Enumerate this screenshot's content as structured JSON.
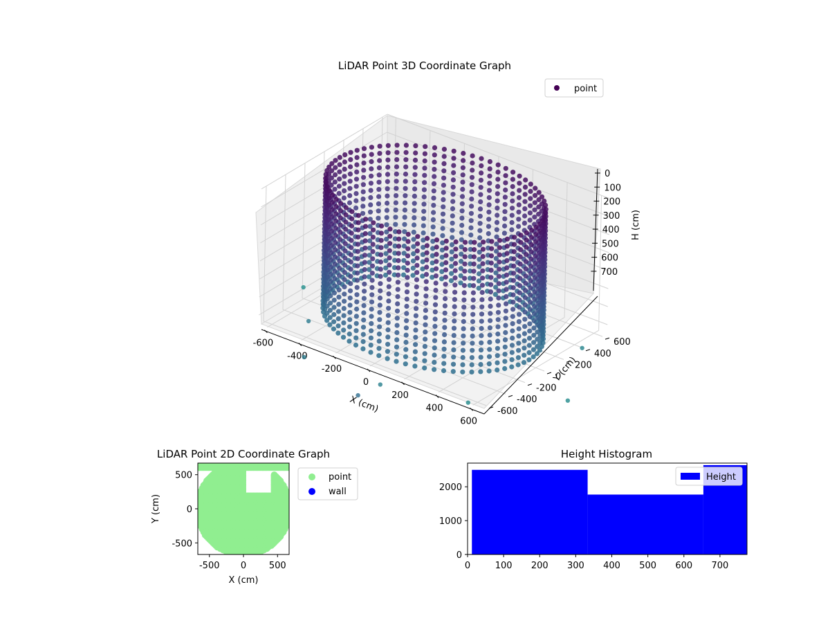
{
  "chart_data": [
    {
      "type": "scatter3d",
      "title": "LiDAR Point 3D Coordinate Graph",
      "xlabel": "X (cm)",
      "ylabel": "Y (cm)",
      "zlabel": "H (cm)",
      "xticks": [
        -600,
        -400,
        -200,
        0,
        200,
        400,
        600
      ],
      "yticks": [
        -600,
        -400,
        -200,
        0,
        200,
        400,
        600
      ],
      "zticks": [
        0,
        100,
        200,
        300,
        400,
        500,
        600,
        700
      ],
      "xlim": [
        -650,
        650
      ],
      "ylim": [
        -650,
        650
      ],
      "zlim": [
        0,
        750
      ],
      "zinverted": true,
      "grid": true,
      "legend": {
        "position": "top-right",
        "entries": [
          {
            "label": "point",
            "color": "#440154"
          }
        ]
      },
      "colormap": "viridis",
      "series": [
        {
          "name": "point",
          "description_shape": "cylindrical wall of radius ~560 cm sampled as vertical columns, plus scattered outliers",
          "wall_radius": 560,
          "wall_height_range": [
            0,
            750
          ],
          "column_count": 72,
          "column_samples": [
            0,
            40,
            80,
            120,
            160,
            200,
            240,
            280,
            320,
            360,
            400,
            440,
            480,
            520,
            560,
            600,
            640,
            680,
            720
          ]
        }
      ]
    },
    {
      "type": "scatter",
      "title": "LiDAR Point 2D Coordinate Graph",
      "xlabel": "X (cm)",
      "ylabel": "Y (cm)",
      "xticks": [
        -500,
        0,
        500
      ],
      "yticks": [
        -500,
        0,
        500
      ],
      "xlim": [
        -670,
        670
      ],
      "ylim": [
        -670,
        670
      ],
      "legend": {
        "position": "outside-right",
        "entries": [
          {
            "label": "point",
            "color": "#90ee90"
          },
          {
            "label": "wall",
            "color": "#0000ff"
          }
        ]
      },
      "series": [
        {
          "name": "point",
          "color": "#90ee90",
          "shape": "filled disk of radius ~650 cm with gaps near (100, 400)"
        },
        {
          "name": "wall",
          "color": "#0000ff",
          "values": []
        }
      ]
    },
    {
      "type": "bar",
      "title": "Height Histogram",
      "xticks": [
        0,
        100,
        200,
        300,
        400,
        500,
        600,
        700
      ],
      "yticks": [
        0,
        1000,
        2000
      ],
      "xlim": [
        0,
        775
      ],
      "ylim": [
        0,
        2700
      ],
      "color": "#0000ff",
      "legend": {
        "position": "top-right",
        "entries": [
          {
            "label": "Height",
            "color": "#0000ff"
          }
        ]
      },
      "bins": [
        {
          "x0": 12,
          "x1": 333,
          "count": 2500
        },
        {
          "x0": 333,
          "x1": 654,
          "count": 1770
        },
        {
          "x0": 654,
          "x1": 775,
          "count": 2640
        }
      ]
    }
  ]
}
